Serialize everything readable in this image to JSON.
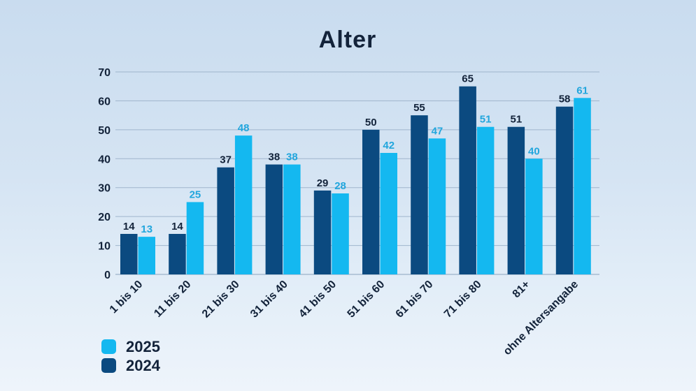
{
  "chart_data": {
    "type": "bar",
    "title": "Alter",
    "categories": [
      "1 bis 10",
      "11 bis 20",
      "21 bis 30",
      "31 bis 40",
      "41 bis 50",
      "51 bis 60",
      "61 bis 70",
      "71 bis 80",
      "81+",
      "ohne Altersangabe"
    ],
    "series": [
      {
        "name": "2024",
        "color": "#0b4a80",
        "label_color": "#13233a",
        "values": [
          14,
          14,
          37,
          38,
          29,
          50,
          55,
          65,
          51,
          58
        ]
      },
      {
        "name": "2025",
        "color": "#14b8f0",
        "label_color": "#22a6dd",
        "values": [
          13,
          25,
          48,
          38,
          28,
          42,
          47,
          51,
          40,
          61
        ]
      }
    ],
    "ylim": [
      0,
      70
    ],
    "yticks": [
      0,
      10,
      20,
      30,
      40,
      50,
      60,
      70
    ],
    "grid": true,
    "legend_position": "bottom-left",
    "legend_order": [
      "2025",
      "2024"
    ],
    "xlabel": "",
    "ylabel": ""
  }
}
